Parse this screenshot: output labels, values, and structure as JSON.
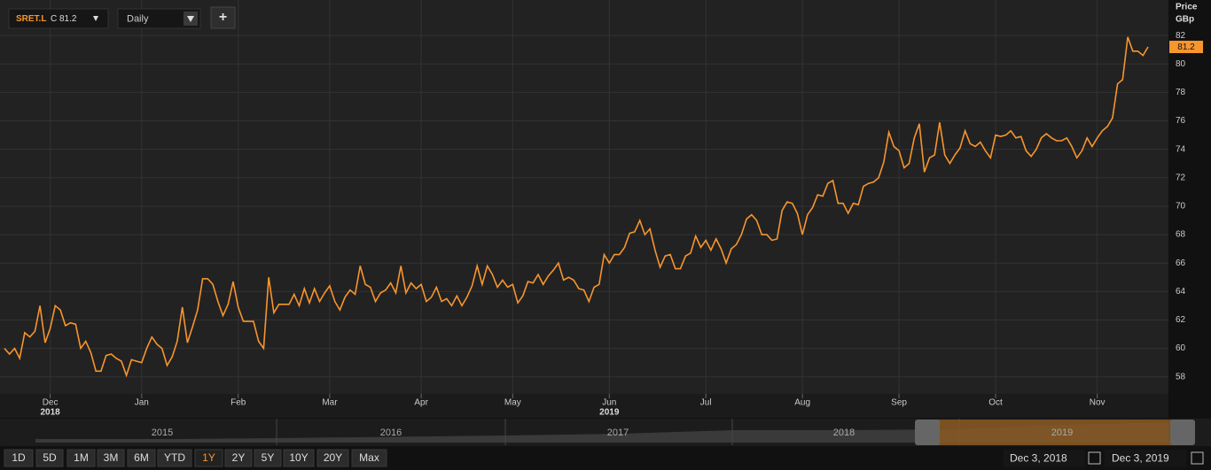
{
  "toolbar": {
    "symbol": "SRET.L",
    "close": "C 81.2",
    "interval": "Daily",
    "add": "+"
  },
  "chart_data": {
    "type": "line",
    "y_axis_title": "Price",
    "y_axis_unit": "GBp",
    "series": [
      {
        "name": "SRET.L",
        "color": "#f7952e",
        "values": [
          60.0,
          59.6,
          60.0,
          59.3,
          61.1,
          60.8,
          61.2,
          63.0,
          60.4,
          61.4,
          63.0,
          62.7,
          61.6,
          61.8,
          61.7,
          60.0,
          60.5,
          59.7,
          58.4,
          58.4,
          59.5,
          59.6,
          59.3,
          59.1,
          58.1,
          59.2,
          59.1,
          59.0,
          60.0,
          60.8,
          60.3,
          60.0,
          58.8,
          59.4,
          60.5,
          62.9,
          60.4,
          61.5,
          62.7,
          64.9,
          64.9,
          64.5,
          63.3,
          62.3,
          63.1,
          64.7,
          62.9,
          61.9,
          61.9,
          61.9,
          60.5,
          60.0,
          65.0,
          62.5,
          63.1,
          63.1,
          63.1,
          63.8,
          63.0,
          64.2,
          63.2,
          64.2,
          63.3,
          63.9,
          64.4,
          63.3,
          62.7,
          63.6,
          64.1,
          63.8,
          65.8,
          64.5,
          64.3,
          63.3,
          63.9,
          64.1,
          64.6,
          63.9,
          65.8,
          63.9,
          64.6,
          64.2,
          64.5,
          63.3,
          63.6,
          64.3,
          63.3,
          63.5,
          63.0,
          63.7,
          63.0,
          63.6,
          64.4,
          65.8,
          64.5,
          65.8,
          65.2,
          64.3,
          64.8,
          64.3,
          64.5,
          63.2,
          63.7,
          64.7,
          64.6,
          65.2,
          64.5,
          65.1,
          65.5,
          66.0,
          64.8,
          65.0,
          64.8,
          64.2,
          64.1,
          63.3,
          64.3,
          64.5,
          66.6,
          66.0,
          66.6,
          66.6,
          67.1,
          68.1,
          68.2,
          69.0,
          68.0,
          68.4,
          66.9,
          65.7,
          66.5,
          66.6,
          65.6,
          65.6,
          66.5,
          66.7,
          67.9,
          67.1,
          67.6,
          66.9,
          67.7,
          67.0,
          66.0,
          67.0,
          67.3,
          68.0,
          69.1,
          69.4,
          69.0,
          68.0,
          68.0,
          67.6,
          67.7,
          69.7,
          70.3,
          70.2,
          69.5,
          68.0,
          69.4,
          69.9,
          70.8,
          70.7,
          71.6,
          71.8,
          70.2,
          70.2,
          69.5,
          70.2,
          70.1,
          71.4,
          71.6,
          71.7,
          72.0,
          73.1,
          75.2,
          74.2,
          73.9,
          72.7,
          73.0,
          74.8,
          75.8,
          72.4,
          73.4,
          73.6,
          75.9,
          73.6,
          73.0,
          73.6,
          74.1,
          75.3,
          74.4,
          74.2,
          74.5,
          73.9,
          73.4,
          75.0,
          74.9,
          75.0,
          75.3,
          74.8,
          74.9,
          73.9,
          73.5,
          74.0,
          74.8,
          75.1,
          74.8,
          74.6,
          74.6,
          74.8,
          74.2,
          73.4,
          73.9,
          74.8,
          74.2,
          74.8,
          75.3,
          75.6,
          76.2,
          78.6,
          78.9,
          81.9,
          80.9,
          80.9,
          80.6,
          81.2
        ]
      }
    ],
    "last_price": "81.2",
    "ylim": [
      56.8,
      84.5
    ],
    "yticks": [
      58,
      60,
      62,
      64,
      66,
      68,
      70,
      72,
      74,
      76,
      78,
      80,
      82
    ],
    "xlim": [
      0,
      225
    ],
    "xticks": [
      {
        "value": 9,
        "label": "Dec"
      },
      {
        "value": 27,
        "label": "Jan"
      },
      {
        "value": 46,
        "label": "Feb"
      },
      {
        "value": 64,
        "label": "Mar"
      },
      {
        "value": 82,
        "label": "Apr"
      },
      {
        "value": 100,
        "label": "May"
      },
      {
        "value": 119,
        "label": "Jun"
      },
      {
        "value": 138,
        "label": "Jul"
      },
      {
        "value": 157,
        "label": "Aug"
      },
      {
        "value": 176,
        "label": "Sep"
      },
      {
        "value": 195,
        "label": "Oct"
      },
      {
        "value": 215,
        "label": "Nov"
      }
    ],
    "xtick_years": [
      {
        "value": 9,
        "label": "2018"
      },
      {
        "value": 119,
        "label": "2019"
      }
    ],
    "grid": true
  },
  "navigator": {
    "years": [
      "2015",
      "2016",
      "2017",
      "2018",
      "2019"
    ]
  },
  "ranges": [
    "1D",
    "5D",
    "1M",
    "3M",
    "6M",
    "YTD",
    "1Y",
    "2Y",
    "5Y",
    "10Y",
    "20Y",
    "Max"
  ],
  "date_range": {
    "start": "Dec 3, 2018",
    "end": "Dec 3, 2019"
  }
}
